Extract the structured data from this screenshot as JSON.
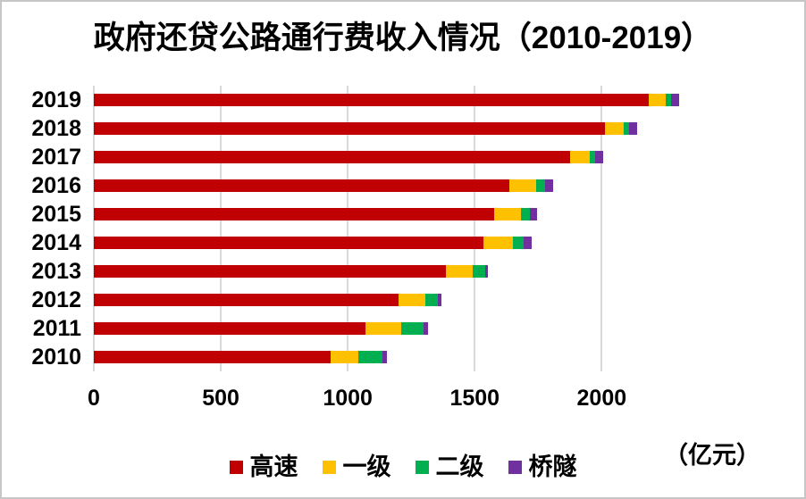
{
  "page": {
    "background": "#ffffff",
    "frame_border_color": "#c6c6c6",
    "gridline_color": "#d9d9d9",
    "text_color": "#000000"
  },
  "chart_data": {
    "type": "bar",
    "orientation": "horizontal",
    "stacked": true,
    "title": "政府还贷公路通行费收入情况（2010-2019）",
    "unit_label": "（亿元）",
    "xlabel": "",
    "ylabel": "",
    "xlim": [
      0,
      2400
    ],
    "xticks": [
      0,
      500,
      1000,
      1500,
      2000
    ],
    "grid": true,
    "legend_position": "bottom",
    "categories": [
      "2019",
      "2018",
      "2017",
      "2016",
      "2015",
      "2014",
      "2013",
      "2012",
      "2011",
      "2010"
    ],
    "series": [
      {
        "name": "高速",
        "key": "expressway",
        "color": "#C00000",
        "values": [
          2185,
          2012,
          1877,
          1636,
          1576,
          1536,
          1386,
          1201,
          1069,
          932
        ]
      },
      {
        "name": "一级",
        "key": "first-class",
        "color": "#FFC000",
        "values": [
          68,
          76,
          75,
          106,
          107,
          114,
          106,
          106,
          143,
          110
        ]
      },
      {
        "name": "二级",
        "key": "second-class",
        "color": "#00B050",
        "values": [
          22,
          20,
          21,
          34,
          35,
          44,
          49,
          47,
          88,
          95
        ]
      },
      {
        "name": "桥隧",
        "key": "bridge-tunnel",
        "color": "#7030A0",
        "values": [
          30,
          33,
          32,
          33,
          29,
          30,
          12,
          15,
          15,
          18
        ]
      }
    ]
  }
}
